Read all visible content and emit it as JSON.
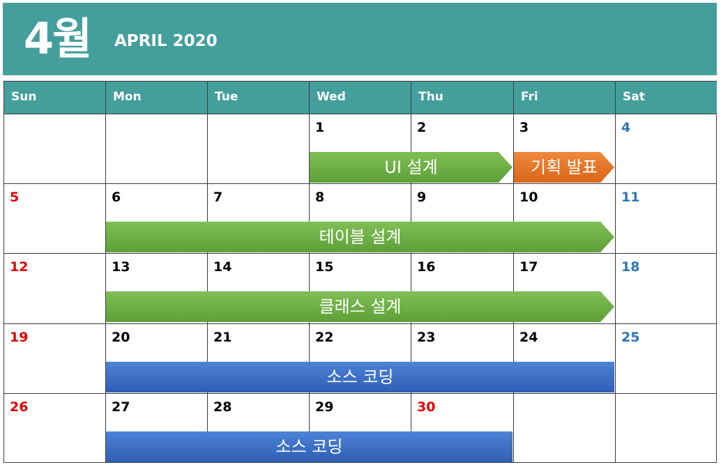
{
  "header": {
    "month_korean": "4월",
    "month_english": "APRIL 2020"
  },
  "weekdays": [
    "Sun",
    "Mon",
    "Tue",
    "Wed",
    "Thu",
    "Fri",
    "Sat"
  ],
  "weeks": [
    [
      "",
      "",
      "",
      "1",
      "2",
      "3",
      "4"
    ],
    [
      "5",
      "6",
      "7",
      "8",
      "9",
      "10",
      "11"
    ],
    [
      "12",
      "13",
      "14",
      "15",
      "16",
      "17",
      "18"
    ],
    [
      "19",
      "20",
      "21",
      "22",
      "23",
      "24",
      "25"
    ],
    [
      "26",
      "27",
      "28",
      "29",
      "30",
      "",
      ""
    ]
  ],
  "colors": {
    "banner": "#449f9c",
    "sunday": "#e00000",
    "saturday": "#2e75b6",
    "weekday": "#000000",
    "holiday": "#e00000"
  },
  "holidays": [
    "30"
  ],
  "events": [
    {
      "label": "UI 설계",
      "week": 0,
      "start": 3,
      "end": 4,
      "color": "green",
      "arrow": true
    },
    {
      "label": "기획 발표",
      "week": 0,
      "start": 5,
      "end": 5,
      "color": "orange",
      "arrow": true
    },
    {
      "label": "테이블 설계",
      "week": 1,
      "start": 1,
      "end": 5,
      "color": "green",
      "arrow": true
    },
    {
      "label": "클래스 설계",
      "week": 2,
      "start": 1,
      "end": 5,
      "color": "green",
      "arrow": true
    },
    {
      "label": "소스 코딩",
      "week": 3,
      "start": 1,
      "end": 5,
      "color": "blue",
      "arrow": false
    },
    {
      "label": "소스 코딩",
      "week": 4,
      "start": 1,
      "end": 4,
      "color": "blue",
      "arrow": false
    }
  ]
}
